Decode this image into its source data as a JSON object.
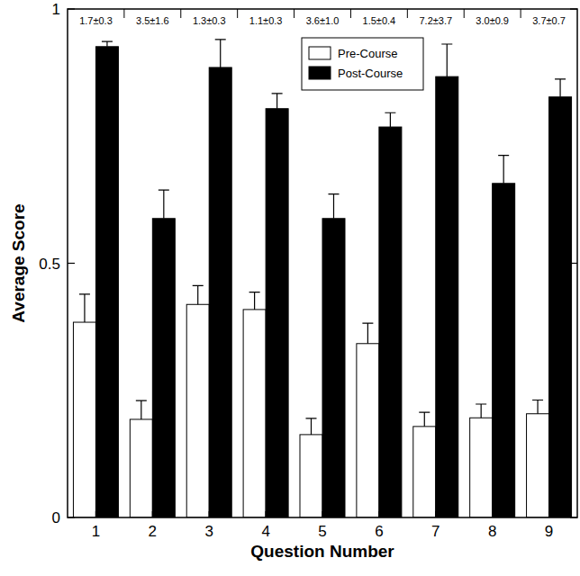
{
  "chart_data": {
    "type": "bar",
    "x_label": "Question Number",
    "y_label": "Average Score",
    "categories": [
      "1",
      "2",
      "3",
      "4",
      "5",
      "6",
      "7",
      "8",
      "9"
    ],
    "series": [
      {
        "name": "Pre-Course",
        "color": "#ffffff",
        "values": [
          0.384,
          0.193,
          0.419,
          0.409,
          0.163,
          0.342,
          0.179,
          0.196,
          0.204
        ],
        "errors": [
          0.055,
          0.037,
          0.037,
          0.034,
          0.032,
          0.04,
          0.028,
          0.027,
          0.027
        ]
      },
      {
        "name": "Post-Course",
        "color": "#000000",
        "values": [
          0.926,
          0.588,
          0.885,
          0.804,
          0.588,
          0.768,
          0.867,
          0.657,
          0.827
        ],
        "errors": [
          0.01,
          0.056,
          0.055,
          0.03,
          0.048,
          0.028,
          0.064,
          0.055,
          0.035
        ]
      }
    ],
    "annotations": [
      "1.7±0.3",
      "3.5±1.6",
      "1.3±0.3",
      "1.1±0.3",
      "3.6±1.0",
      "1.5±0.4",
      "7.2±3.7",
      "3.0±0.9",
      "3.7±0.7"
    ],
    "ylim": [
      0,
      1
    ],
    "yticks": [
      0,
      0.5,
      1
    ],
    "legend": "top",
    "grid": false
  }
}
